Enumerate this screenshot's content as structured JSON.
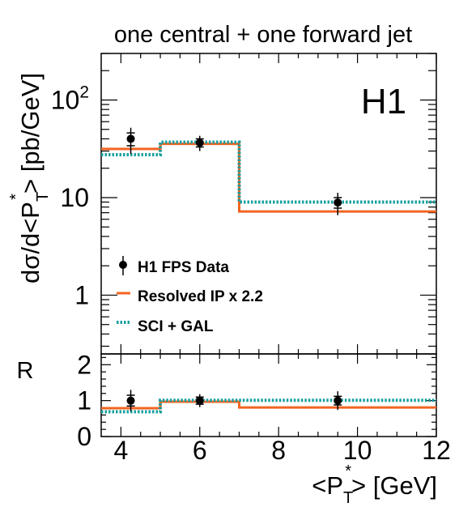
{
  "chart_data": [
    {
      "type": "line",
      "title": "one central + one forward jet",
      "experiment_label": "H1",
      "xlabel": "<P_T^*> [GeV]",
      "ylabel": "dσ/d<P_T^*> [pb/GeV]",
      "ylabel_parts": {
        "pre": "dσ/d<P",
        "sub": "T",
        "sup": "*",
        "post": "> [pb/GeV]"
      },
      "yscale": "log",
      "ylim": [
        0.25,
        300
      ],
      "xlim": [
        3.5,
        12
      ],
      "ytick_labels": [
        {
          "value": 1,
          "base": "1",
          "exp": ""
        },
        {
          "value": 10,
          "base": "10",
          "exp": ""
        },
        {
          "value": 100,
          "base": "10",
          "exp": "2"
        }
      ],
      "series": [
        {
          "name": "H1 FPS Data",
          "kind": "points",
          "color": "#000000",
          "x": [
            4.25,
            6.0,
            9.5
          ],
          "y": [
            40.0,
            36.5,
            8.9
          ],
          "y_err_stat_low": [
            6.0,
            3.5,
            1.1
          ],
          "y_err_stat_high": [
            6.0,
            3.5,
            1.1
          ],
          "y_err_tot_low": [
            12.0,
            6.5,
            2.3
          ],
          "y_err_tot_high": [
            12.0,
            6.5,
            2.3
          ]
        },
        {
          "name": "Resolved IP x 2.2",
          "kind": "histogram",
          "color": "#f26522",
          "dash": "solid",
          "bin_edges": [
            3.5,
            5,
            7,
            12
          ],
          "values": [
            31.5,
            35.5,
            7.2
          ]
        },
        {
          "name": "SCI + GAL",
          "kind": "histogram",
          "color": "#1aa0a0",
          "dash": "dotted",
          "bin_edges": [
            3.5,
            5,
            7,
            12
          ],
          "values": [
            27.5,
            37.0,
            9.0
          ]
        }
      ],
      "legend_position": "bottom-left"
    },
    {
      "type": "line",
      "title": "",
      "ylabel": "R",
      "xlabel": "<P_T^*> [GeV]",
      "xlabel_parts": {
        "pre": "<P",
        "sub": "T",
        "sup": "*",
        "post": "> [GeV]"
      },
      "xlim": [
        3.5,
        12
      ],
      "ylim": [
        0,
        2.3
      ],
      "xtick_labels": [
        "4",
        "6",
        "8",
        "10",
        "12"
      ],
      "ytick_labels": [
        "0",
        "1",
        "2"
      ],
      "series": [
        {
          "name": "H1 FPS Data",
          "kind": "points",
          "color": "#000000",
          "x": [
            4.25,
            6.0,
            9.5
          ],
          "y": [
            1.0,
            1.0,
            1.0
          ],
          "y_err_stat_low": [
            0.15,
            0.1,
            0.12
          ],
          "y_err_stat_high": [
            0.15,
            0.1,
            0.12
          ],
          "y_err_tot_low": [
            0.3,
            0.18,
            0.26
          ],
          "y_err_tot_high": [
            0.3,
            0.18,
            0.26
          ]
        },
        {
          "name": "Resolved IP x 2.2",
          "kind": "histogram",
          "color": "#f26522",
          "dash": "solid",
          "bin_edges": [
            3.5,
            5,
            7,
            12
          ],
          "values": [
            0.79,
            0.97,
            0.81
          ]
        },
        {
          "name": "SCI + GAL",
          "kind": "histogram",
          "color": "#1aa0a0",
          "dash": "dotted",
          "bin_edges": [
            3.5,
            5,
            7,
            12
          ],
          "values": [
            0.69,
            1.01,
            1.01
          ]
        }
      ]
    }
  ]
}
